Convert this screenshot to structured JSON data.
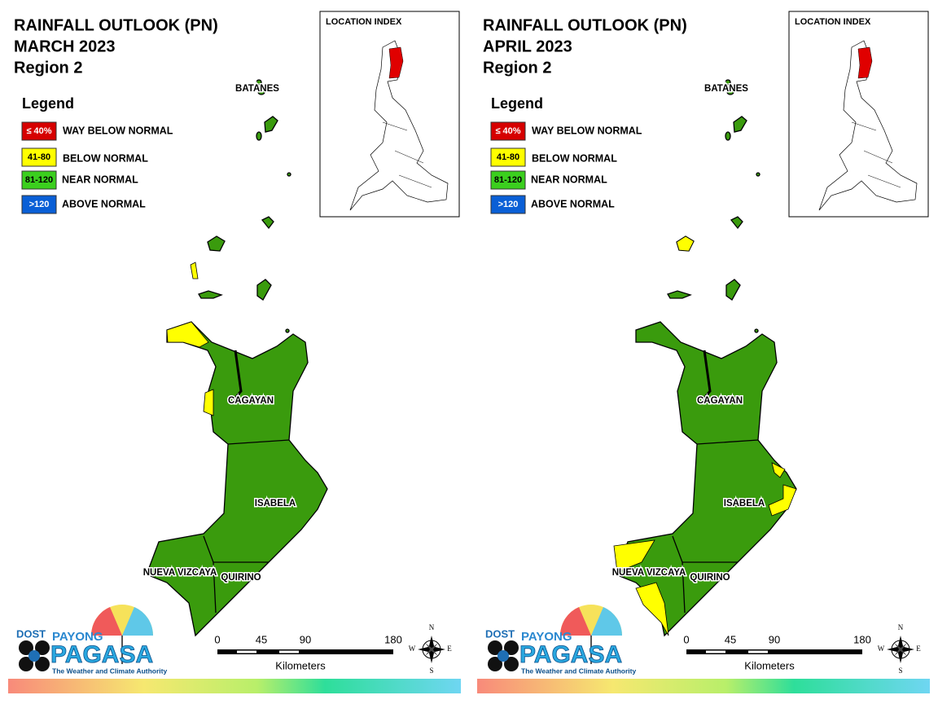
{
  "panels": [
    {
      "title": [
        "RAINFALL OUTLOOK (PN)",
        "MARCH 2023",
        "Region 2"
      ],
      "legend": {
        "title": "Legend",
        "items": [
          {
            "range": "≤ 40%",
            "label": "WAY BELOW NORMAL",
            "color": "#d60000"
          },
          {
            "range": "41-80",
            "label": "BELOW NORMAL",
            "color": "#ffff00"
          },
          {
            "range": "81-120",
            "label": "NEAR NORMAL",
            "color": "#3bcf1e"
          },
          {
            "range": ">120",
            "label": "ABOVE NORMAL",
            "color": "#0a5fd6"
          }
        ]
      },
      "inset_title": "LOCATION INDEX",
      "provinces": [
        "BATANES",
        "CAGAYAN",
        "ISABELA",
        "NUEVA VIZCAYA",
        "QUIRINO"
      ],
      "scale": {
        "ticks": [
          0,
          45,
          90,
          180
        ],
        "unit": "Kilometers"
      },
      "compass": [
        "N",
        "E",
        "S",
        "W"
      ],
      "logo": {
        "dost": "DOST",
        "payong": "PAYONG",
        "pagasa": "PAGASA",
        "tagline": "The Weather and Climate Authority"
      }
    },
    {
      "title": [
        "RAINFALL OUTLOOK (PN)",
        "APRIL 2023",
        "Region 2"
      ],
      "legend": {
        "title": "Legend",
        "items": [
          {
            "range": "≤ 40%",
            "label": "WAY BELOW NORMAL",
            "color": "#d60000"
          },
          {
            "range": "41-80",
            "label": "BELOW NORMAL",
            "color": "#ffff00"
          },
          {
            "range": "81-120",
            "label": "NEAR NORMAL",
            "color": "#3bcf1e"
          },
          {
            "range": ">120",
            "label": "ABOVE NORMAL",
            "color": "#0a5fd6"
          }
        ]
      },
      "inset_title": "LOCATION INDEX",
      "provinces": [
        "BATANES",
        "CAGAYAN",
        "ISABELA",
        "NUEVA VIZCAYA",
        "QUIRINO"
      ],
      "scale": {
        "ticks": [
          0,
          45,
          90,
          180
        ],
        "unit": "Kilometers"
      },
      "compass": [
        "N",
        "E",
        "S",
        "W"
      ],
      "logo": {
        "dost": "DOST",
        "payong": "PAYONG",
        "pagasa": "PAGASA",
        "tagline": "The Weather and Climate Authority"
      }
    }
  ]
}
